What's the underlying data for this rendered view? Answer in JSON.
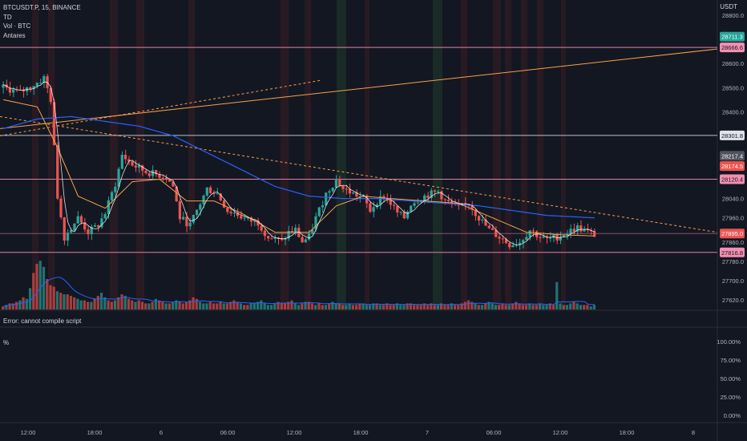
{
  "legend": {
    "symbol": "BTCUSDT.P, 15, BINANCE",
    "line2": "TD",
    "line3": "Vol · BTC",
    "line4": "Antares"
  },
  "currency": "USDT",
  "error_text": "Error: cannot compile script",
  "lower_pane_label": "%",
  "colors": {
    "background": "#131722",
    "up": "#26a69a",
    "down": "#ef5350",
    "line_tag": "#f48fb1",
    "trend_orange": "#f7a04c",
    "ma_blue": "#2962ff"
  },
  "chart_data": {
    "type": "candlestick",
    "symbol": "BTCUSDT.P",
    "interval": "15",
    "price_axis": {
      "ticks": [
        28800.0,
        28600.0,
        28500.0,
        28400.0,
        28120.0,
        28040.0,
        27960.0,
        27860.0,
        27780.0,
        27700.0,
        27620.0
      ],
      "range": [
        27580,
        28830
      ]
    },
    "time_axis": {
      "labels": [
        "12:00",
        "18:00",
        "6",
        "06:00",
        "12:00",
        "18:00",
        "7",
        "06:00",
        "12:00",
        "18:00",
        "8"
      ]
    },
    "percent_axis": {
      "ticks": [
        "100.00%",
        "75.00%",
        "50.00%",
        "25.00%",
        "0.00%"
      ]
    },
    "horizontal_levels": [
      {
        "price": 28666.6,
        "label": "28666.6"
      },
      {
        "price": 28301.8,
        "label": "28301.8"
      },
      {
        "price": 28120.4,
        "label": "28120.4"
      },
      {
        "price": 27895.0,
        "label": "27895.0"
      },
      {
        "price": 27816.8,
        "label": "27816.8"
      }
    ],
    "price_tags": [
      {
        "price": 28711.3,
        "label": "28711.3",
        "kind": "up"
      },
      {
        "price": 28666.6,
        "label": "28666.6",
        "kind": "level"
      },
      {
        "price": 28301.8,
        "label": "28301.8",
        "kind": "white"
      },
      {
        "price": 28217.4,
        "label": "28217.4",
        "kind": "grey"
      },
      {
        "price": 28174.5,
        "label": "28174.5",
        "kind": "down"
      },
      {
        "price": 28120.4,
        "label": "28120.4",
        "kind": "level"
      },
      {
        "price": 27895.0,
        "label": "27895.0",
        "kind": "down"
      },
      {
        "price": 27816.8,
        "label": "27816.8",
        "kind": "level"
      }
    ],
    "close_path": [
      [
        0,
        28500
      ],
      [
        5,
        28480
      ],
      [
        10,
        28520
      ],
      [
        12,
        28540
      ],
      [
        14,
        28450
      ],
      [
        16,
        28050
      ],
      [
        18,
        27880
      ],
      [
        22,
        27960
      ],
      [
        25,
        27900
      ],
      [
        28,
        27930
      ],
      [
        30,
        27980
      ],
      [
        33,
        28100
      ],
      [
        35,
        28220
      ],
      [
        38,
        28180
      ],
      [
        42,
        28150
      ],
      [
        45,
        28140
      ],
      [
        48,
        28130
      ],
      [
        50,
        28090
      ],
      [
        52,
        27960
      ],
      [
        55,
        27930
      ],
      [
        58,
        28020
      ],
      [
        60,
        28080
      ],
      [
        63,
        28060
      ],
      [
        66,
        27990
      ],
      [
        68,
        27980
      ],
      [
        72,
        27950
      ],
      [
        75,
        27940
      ],
      [
        78,
        27880
      ],
      [
        82,
        27860
      ],
      [
        84,
        27900
      ],
      [
        86,
        27910
      ],
      [
        88,
        27860
      ],
      [
        90,
        27880
      ],
      [
        92,
        27960
      ],
      [
        95,
        28060
      ],
      [
        98,
        28120
      ],
      [
        100,
        28080
      ],
      [
        103,
        28060
      ],
      [
        106,
        28040
      ],
      [
        108,
        27990
      ],
      [
        110,
        28030
      ],
      [
        112,
        28050
      ],
      [
        114,
        28020
      ],
      [
        116,
        27980
      ],
      [
        118,
        27960
      ],
      [
        120,
        28020
      ],
      [
        124,
        28050
      ],
      [
        128,
        28070
      ],
      [
        130,
        28030
      ],
      [
        134,
        28000
      ],
      [
        137,
        28020
      ],
      [
        140,
        27960
      ],
      [
        143,
        27910
      ],
      [
        146,
        27880
      ],
      [
        149,
        27850
      ],
      [
        152,
        27860
      ],
      [
        155,
        27910
      ],
      [
        158,
        27880
      ],
      [
        160,
        27870
      ],
      [
        163,
        27880
      ],
      [
        166,
        27900
      ],
      [
        169,
        27920
      ],
      [
        172,
        27900
      ],
      [
        174,
        27890
      ]
    ],
    "sma_fast_orange": [
      [
        0,
        28450
      ],
      [
        10,
        28420
      ],
      [
        16,
        28250
      ],
      [
        22,
        28050
      ],
      [
        30,
        28000
      ],
      [
        38,
        28110
      ],
      [
        46,
        28120
      ],
      [
        54,
        28030
      ],
      [
        62,
        28030
      ],
      [
        70,
        27980
      ],
      [
        80,
        27900
      ],
      [
        90,
        27900
      ],
      [
        98,
        28010
      ],
      [
        106,
        28050
      ],
      [
        114,
        28040
      ],
      [
        124,
        28030
      ],
      [
        134,
        28020
      ],
      [
        144,
        27960
      ],
      [
        154,
        27900
      ],
      [
        164,
        27890
      ],
      [
        174,
        27885
      ]
    ],
    "sma_slow_blue": [
      [
        0,
        28330
      ],
      [
        10,
        28370
      ],
      [
        20,
        28380
      ],
      [
        30,
        28360
      ],
      [
        40,
        28340
      ],
      [
        50,
        28300
      ],
      [
        60,
        28230
      ],
      [
        70,
        28160
      ],
      [
        80,
        28090
      ],
      [
        90,
        28050
      ],
      [
        100,
        28040
      ],
      [
        110,
        28040
      ],
      [
        120,
        28030
      ],
      [
        130,
        28020
      ],
      [
        140,
        28010
      ],
      [
        150,
        27990
      ],
      [
        160,
        27970
      ],
      [
        174,
        27960
      ]
    ],
    "volume_profile": [
      2,
      3,
      4,
      4,
      5,
      6,
      8,
      7,
      14,
      24,
      30,
      32,
      28,
      20,
      16,
      15,
      12,
      11,
      10,
      10,
      9,
      8,
      7,
      6,
      6,
      5,
      5,
      7,
      9,
      11,
      8,
      6,
      5,
      6,
      8,
      10,
      9,
      7,
      6,
      5,
      6,
      5,
      4,
      4,
      5,
      7,
      6,
      5,
      4,
      4,
      5,
      6,
      5,
      4,
      5,
      6,
      8,
      7,
      5,
      4,
      4,
      5,
      4,
      4,
      5,
      4,
      4,
      5,
      6,
      5,
      4,
      3,
      3,
      4,
      4,
      5,
      6,
      4,
      3,
      3,
      4,
      5,
      4,
      4,
      5,
      6,
      4,
      3,
      4,
      5,
      5,
      4,
      3,
      4,
      3,
      3,
      4,
      5,
      4,
      4,
      3,
      3,
      4,
      3,
      3,
      4,
      4,
      3,
      3,
      4,
      4,
      3,
      3,
      4,
      3,
      3,
      4,
      3,
      3,
      4,
      4,
      3,
      3,
      3,
      4,
      3,
      4,
      3,
      3,
      4,
      3,
      3,
      4,
      3,
      3,
      4,
      5,
      6,
      5,
      4,
      3,
      3,
      4,
      5,
      4,
      3,
      3,
      4,
      3,
      3,
      4,
      5,
      4,
      3,
      3,
      4,
      3,
      3,
      4,
      3,
      3,
      4,
      3,
      18,
      4,
      3,
      3,
      4,
      5,
      4,
      3,
      3,
      3
    ]
  }
}
